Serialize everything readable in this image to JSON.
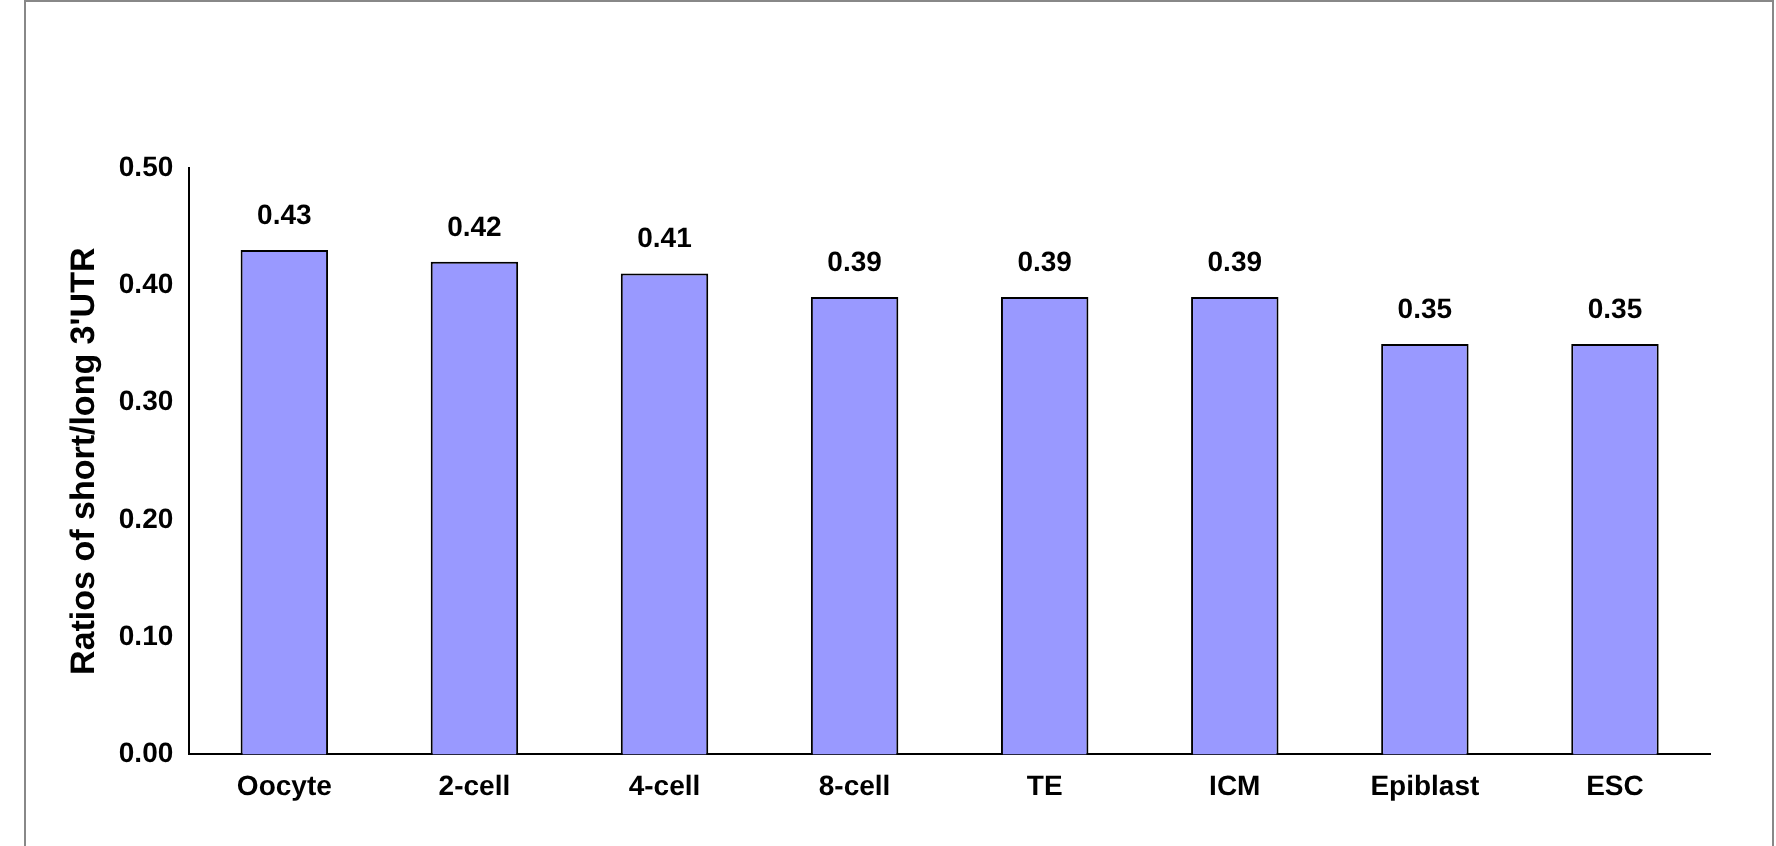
{
  "chart_data": {
    "type": "bar",
    "ylabel": "Ratios of short/long 3'UTR",
    "categories": [
      "Oocyte",
      "2-cell",
      "4-cell",
      "8-cell",
      "TE",
      "ICM",
      "Epiblast",
      "ESC"
    ],
    "values": [
      0.43,
      0.42,
      0.41,
      0.39,
      0.39,
      0.39,
      0.35,
      0.35
    ],
    "color": "#9999ff",
    "ylim": [
      0,
      0.5
    ],
    "yticks": [
      {
        "value": 0,
        "label": "0.00"
      },
      {
        "value": 0.1,
        "label": "0.10"
      },
      {
        "value": 0.2,
        "label": "0.20"
      },
      {
        "value": 0.3,
        "label": "0.30"
      },
      {
        "value": 0.4,
        "label": "0.40"
      },
      {
        "value": 0.5,
        "label": "0.50"
      }
    ],
    "grid": false,
    "legend": false,
    "data_labels": true
  }
}
